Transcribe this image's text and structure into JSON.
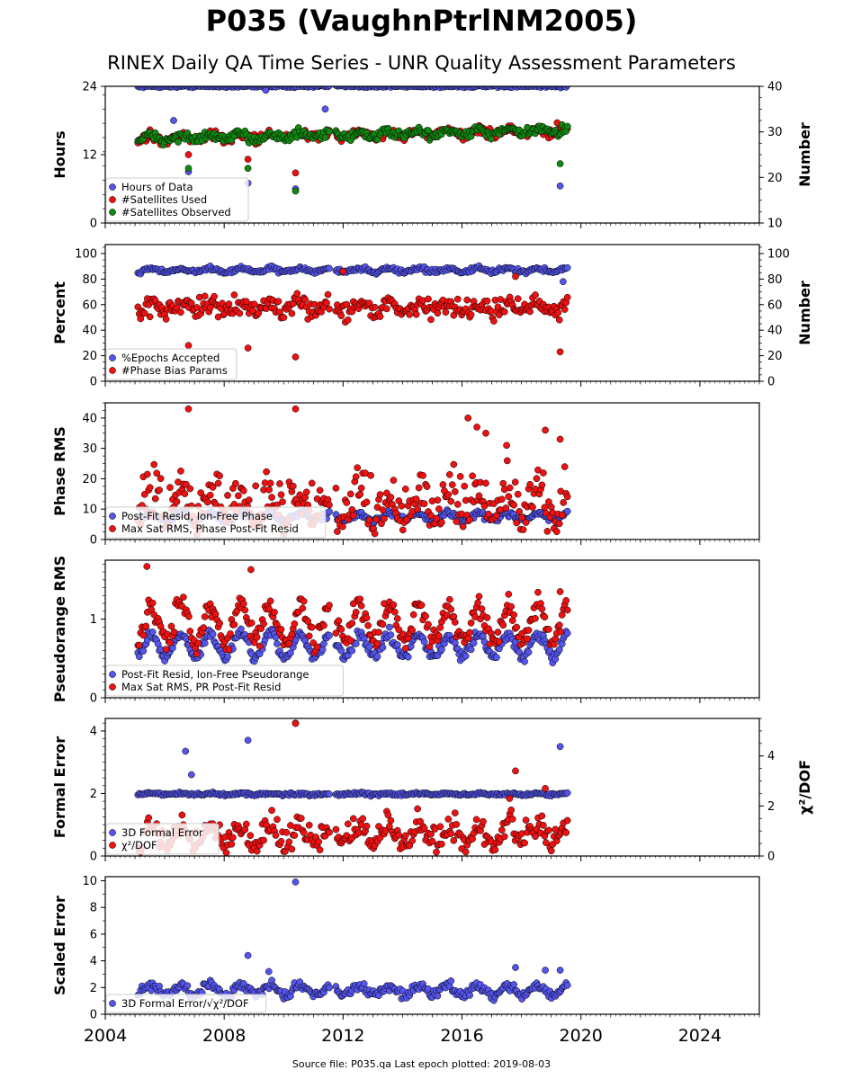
{
  "title": "P035 (VaughnPtrlNM2005)",
  "subtitle": "RINEX Daily QA Time Series - UNR Quality Assessment Parameters",
  "footer": "Source file: P035.qa Last epoch plotted: 2019-08-03",
  "colors": {
    "blue": "#5555ee",
    "red": "#ee1111",
    "green": "#118811",
    "axis": "#000000"
  },
  "chart_data": [
    {
      "type": "scatter",
      "ylabel": "Hours",
      "ylabel_right": "Number",
      "ylim": [
        0,
        24
      ],
      "yticks": [
        0,
        12,
        24
      ],
      "ylim_right": [
        10,
        40
      ],
      "yticks_right": [
        10,
        20,
        30,
        40
      ],
      "legend_position": "lower-left",
      "series": [
        {
          "name": "Hours of Data",
          "color": "blue",
          "axis": "left",
          "base": 24,
          "seasonal": 0,
          "noise": 0.15,
          "outliers": [
            [
              2006.3,
              18
            ],
            [
              2006.8,
              9
            ],
            [
              2008.8,
              7
            ],
            [
              2009.4,
              23.3
            ],
            [
              2010.4,
              6
            ],
            [
              2011.4,
              20
            ],
            [
              2019.3,
              6.5
            ]
          ]
        },
        {
          "name": "#Satellites Used",
          "color": "red",
          "axis": "right",
          "base": 28.5,
          "seasonal": 0.6,
          "noise": 0.7,
          "trend": 0.12,
          "outliers": [
            [
              2006.8,
              25
            ],
            [
              2008.8,
              24
            ],
            [
              2010.4,
              21
            ],
            [
              2019.2,
              32
            ]
          ]
        },
        {
          "name": "#Satellites Observed",
          "color": "green",
          "axis": "right",
          "base": 28.5,
          "seasonal": 0.6,
          "noise": 0.7,
          "trend": 0.12,
          "outliers": [
            [
              2006.8,
              22
            ],
            [
              2008.8,
              22
            ],
            [
              2010.4,
              17
            ],
            [
              2019.3,
              23
            ]
          ]
        }
      ]
    },
    {
      "type": "scatter",
      "ylabel": "Percent",
      "ylabel_right": "Number",
      "ylim": [
        0,
        107
      ],
      "yticks": [
        0,
        20,
        40,
        60,
        80,
        100
      ],
      "ylim_right": [
        0,
        107
      ],
      "yticks_right": [
        0,
        20,
        40,
        60,
        80,
        100
      ],
      "legend_position": "lower-left",
      "series": [
        {
          "name": "%Epochs Accepted",
          "color": "blue",
          "axis": "left",
          "base": 87,
          "seasonal": 1.5,
          "noise": 1.2,
          "outliers": [
            [
              2019.4,
              78
            ]
          ]
        },
        {
          "name": "#Phase Bias Params",
          "color": "red",
          "axis": "right",
          "base": 58,
          "seasonal": 3,
          "noise": 5,
          "outliers": [
            [
              2006.8,
              28
            ],
            [
              2008.8,
              26
            ],
            [
              2010.4,
              19
            ],
            [
              2012.0,
              86
            ],
            [
              2017.8,
              82
            ],
            [
              2019.3,
              23
            ]
          ]
        }
      ]
    },
    {
      "type": "scatter",
      "ylabel": "Phase RMS",
      "ylim": [
        0,
        45
      ],
      "yticks": [
        0,
        10,
        20,
        30,
        40
      ],
      "legend_position": "lower-left",
      "series": [
        {
          "name": "Post-Fit Resid, Ion-Free Phase",
          "color": "blue",
          "axis": "left",
          "base": 7.5,
          "seasonal": 1.2,
          "noise": 0.8,
          "outliers": []
        },
        {
          "name": "Max Sat RMS, Phase Post-Fit Resid",
          "color": "red",
          "axis": "left",
          "base": 11,
          "seasonal": 4,
          "noise": 4,
          "skew": true,
          "outliers": [
            [
              2006.8,
              43
            ],
            [
              2010.4,
              43
            ],
            [
              2016.2,
              40
            ],
            [
              2016.5,
              37
            ],
            [
              2016.8,
              35
            ],
            [
              2017.5,
              31
            ],
            [
              2018.8,
              36
            ],
            [
              2019.3,
              33
            ]
          ]
        }
      ]
    },
    {
      "type": "scatter",
      "ylabel": "Pseudorange RMS",
      "ylim": [
        0,
        1.75
      ],
      "yticks": [
        0,
        1
      ],
      "legend_position": "lower-left",
      "series": [
        {
          "name": "Post-Fit Resid, Ion-Free Pseudorange",
          "color": "blue",
          "axis": "left",
          "base": 0.66,
          "seasonal": 0.14,
          "noise": 0.05,
          "outliers": []
        },
        {
          "name": "Max Sat RMS, PR Post-Fit Resid",
          "color": "red",
          "axis": "left",
          "base": 0.95,
          "seasonal": 0.22,
          "noise": 0.1,
          "outliers": [
            [
              2005.4,
              1.67
            ],
            [
              2008.9,
              1.63
            ],
            [
              2019.3,
              1.35
            ]
          ]
        }
      ]
    },
    {
      "type": "scatter",
      "ylabel": "Formal Error",
      "ylabel_right": "χ²/DOF",
      "ylim": [
        0,
        4.4
      ],
      "yticks": [
        0,
        2,
        4
      ],
      "ylim_right": [
        0,
        5.5
      ],
      "yticks_right": [
        0,
        2,
        4
      ],
      "legend_position": "lower-left",
      "series": [
        {
          "name": "3D Formal Error",
          "color": "blue",
          "axis": "left",
          "base": 1.98,
          "seasonal": 0.02,
          "noise": 0.03,
          "outliers": [
            [
              2006.7,
              3.35
            ],
            [
              2006.9,
              2.6
            ],
            [
              2008.8,
              3.7
            ],
            [
              2010.4,
              4.25
            ],
            [
              2019.3,
              3.5
            ]
          ]
        },
        {
          "name": "χ²/DOF",
          "color": "red",
          "axis": "right",
          "base": 0.8,
          "seasonal": 0.35,
          "noise": 0.25,
          "skew": true,
          "outliers": [
            [
              2010.4,
              5.3
            ],
            [
              2017.8,
              3.4
            ],
            [
              2018.8,
              2.7
            ],
            [
              2017.6,
              2.3
            ]
          ]
        }
      ]
    },
    {
      "type": "scatter",
      "ylabel": "Scaled Error",
      "ylim": [
        0,
        10.3
      ],
      "yticks": [
        0,
        2,
        4,
        6,
        8,
        10
      ],
      "legend_position": "lower-left",
      "series": [
        {
          "name": "3D Formal Error/√χ²/DOF",
          "color": "blue",
          "axis": "left",
          "base": 1.8,
          "seasonal": 0.35,
          "noise": 0.25,
          "outliers": [
            [
              2008.8,
              4.4
            ],
            [
              2009.5,
              3.2
            ],
            [
              2010.4,
              9.9
            ],
            [
              2017.8,
              3.5
            ],
            [
              2018.8,
              3.3
            ],
            [
              2019.3,
              3.3
            ]
          ]
        }
      ]
    }
  ],
  "x_axis": {
    "xlim": [
      2004,
      2026
    ],
    "xticks": [
      2004,
      2008,
      2012,
      2016,
      2020,
      2024
    ],
    "data_start": 2005.1,
    "data_end": 2019.59,
    "gap": [
      2011.55,
      2011.72
    ]
  }
}
